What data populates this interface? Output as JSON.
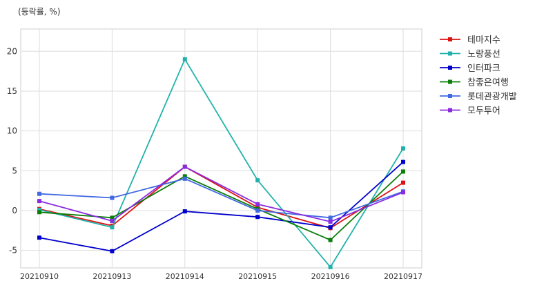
{
  "chart_data": {
    "type": "line",
    "unit_label": "(등락률, %)",
    "x": [
      "20210910",
      "20210913",
      "20210914",
      "20210915",
      "20210916",
      "20210917"
    ],
    "ylim": [
      -7.2,
      22.8
    ],
    "yticks": [
      -5,
      0,
      5,
      10,
      15,
      20
    ],
    "grid": true,
    "legend_position": "right",
    "series": [
      {
        "name": "테마지수",
        "color": "#dd1111",
        "values": [
          0.2,
          -1.9,
          5.5,
          0.4,
          -2.2,
          3.5
        ]
      },
      {
        "name": "노랑풍선",
        "color": "#20b2aa",
        "values": [
          0.1,
          -2.1,
          19.0,
          3.8,
          -7.1,
          7.8
        ]
      },
      {
        "name": "인터파크",
        "color": "#0000cc",
        "values": [
          -3.4,
          -5.1,
          -0.1,
          -0.8,
          -2.1,
          6.1
        ]
      },
      {
        "name": "참좋은여행",
        "color": "#0a7d0a",
        "values": [
          -0.2,
          -0.9,
          4.3,
          0.2,
          -3.7,
          4.9
        ]
      },
      {
        "name": "롯데관광개발",
        "color": "#4169e1",
        "values": [
          2.1,
          1.6,
          4.0,
          0.0,
          -0.9,
          2.4
        ]
      },
      {
        "name": "모두투어",
        "color": "#8a2be2",
        "values": [
          1.2,
          -1.3,
          5.5,
          0.8,
          -1.4,
          2.3
        ]
      }
    ]
  }
}
